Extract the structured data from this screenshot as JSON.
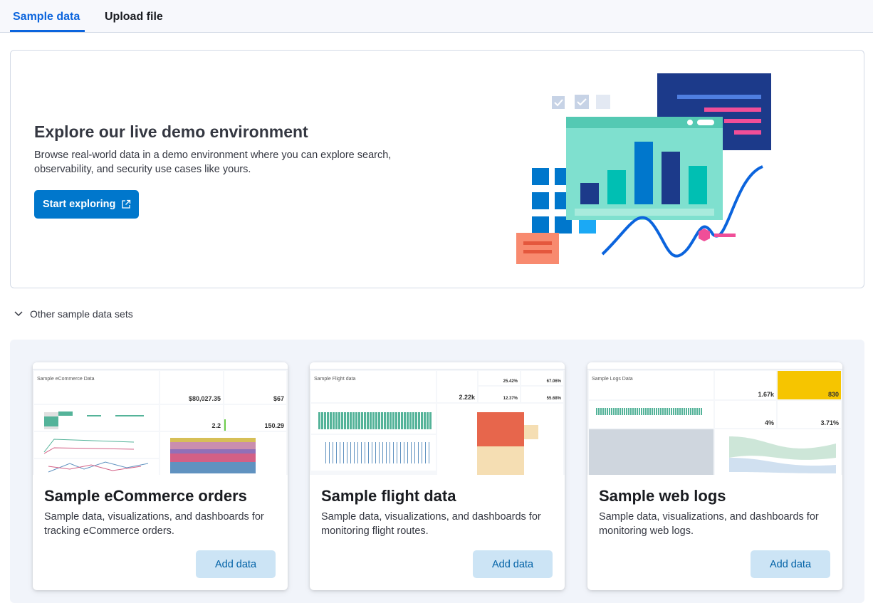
{
  "tabs": [
    {
      "label": "Sample data",
      "active": true
    },
    {
      "label": "Upload file",
      "active": false
    }
  ],
  "hero": {
    "title": "Explore our live demo environment",
    "description": "Browse real-world data in a demo environment where you can explore search, observability, and security use cases like yours.",
    "button_label": "Start exploring",
    "button_icon": "external-link-icon"
  },
  "accordion": {
    "label": "Other sample data sets",
    "icon": "chevron-down-icon"
  },
  "cards": [
    {
      "title": "Sample eCommerce orders",
      "description": "Sample data, visualizations, and dashboards for tracking eCommerce orders.",
      "button_label": "Add data",
      "thumb": {
        "heading": "Sample eCommerce Data",
        "metrics": [
          "$80,027.35",
          "$67",
          "2.2",
          "150.29"
        ]
      }
    },
    {
      "title": "Sample flight data",
      "description": "Sample data, visualizations, and dashboards for monitoring flight routes.",
      "button_label": "Add data",
      "thumb": {
        "heading": "Sample Flight data",
        "metrics": [
          "2.22k",
          "25.42%",
          "67.06%",
          "12.37%",
          "55.68%"
        ]
      }
    },
    {
      "title": "Sample web logs",
      "description": "Sample data, visualizations, and dashboards for monitoring web logs.",
      "button_label": "Add data",
      "thumb": {
        "heading": "Sample Logs Data",
        "metrics": [
          "1.67k",
          "830",
          "4%",
          "3.71%"
        ]
      }
    }
  ],
  "colors": {
    "accent": "#0b64dd",
    "primary_button": "#0077cc",
    "add_button_bg": "#cce4f5",
    "add_button_text": "#0061a6"
  }
}
